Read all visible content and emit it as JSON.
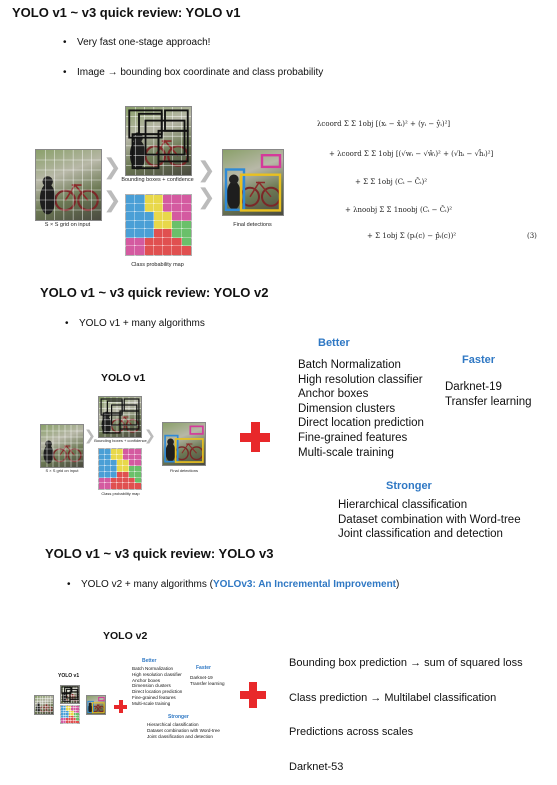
{
  "section1": {
    "title": "YOLO v1 ~ v3 quick review: YOLO v1",
    "bullets": [
      "Very fast one-stage approach!",
      "Image → bounding box coordinate and class probability"
    ],
    "figure": {
      "grid_caption": "S × S grid on input",
      "boxes_caption": "Bounding boxes + confidence",
      "prob_caption": "Class probability map",
      "final_caption": "Final detections"
    },
    "equation": {
      "lines": [
        "λcoord Σ Σ 1obj [(xᵢ − x̂ᵢ)² + (yᵢ − ŷᵢ)²]",
        "+ λcoord Σ Σ 1obj [(√wᵢ − √ŵᵢ)² + (√hᵢ − √ĥᵢ)²]",
        "+ Σ Σ 1obj (Cᵢ − Ĉᵢ)²",
        "+ λnoobj Σ Σ 1noobj (Cᵢ − Ĉᵢ)²",
        "+ Σ 1obj Σ (pᵢ(c) − p̂ᵢ(c))²"
      ],
      "number": "(3)"
    }
  },
  "section2": {
    "title": "YOLO v1 ~ v3 quick review: YOLO v2",
    "bullets": [
      "YOLO v1 + many algorithms"
    ],
    "yolo_label": "YOLO v1",
    "better_heading": "Better",
    "better_items": [
      "Batch Normalization",
      "High resolution classifier",
      "Anchor boxes",
      "Dimension clusters",
      "Direct location prediction",
      "Fine-grained features",
      "Multi-scale training"
    ],
    "faster_heading": "Faster",
    "faster_items": [
      "Darknet-19",
      "Transfer learning"
    ],
    "stronger_heading": "Stronger",
    "stronger_items": [
      "Hierarchical classification",
      "Dataset combination with Word-tree",
      "Joint classification and detection"
    ]
  },
  "section3": {
    "title": "YOLO v1 ~ v3 quick review: YOLO v3",
    "bullet_prefix": "YOLO v2 + many algorithms (",
    "bullet_link": "YOLOv3: An Incremental Improvement",
    "bullet_suffix": ")",
    "yolo_label": "YOLO v2",
    "items": [
      "Bounding box prediction → sum of squared loss",
      "Class prediction → Multilabel classification",
      "Predictions across scales",
      "Darknet-53"
    ]
  },
  "colors": {
    "accent_blue": "#2f78c4",
    "plus_red": "#e8282a"
  },
  "prob_map_colors": [
    [
      "#4a9fd6",
      "#4a9fd6",
      "#e8d84a",
      "#e8d84a",
      "#d45aa0",
      "#d45aa0",
      "#d45aa0"
    ],
    [
      "#4a9fd6",
      "#4a9fd6",
      "#e8d84a",
      "#e8d84a",
      "#d45aa0",
      "#d45aa0",
      "#d45aa0"
    ],
    [
      "#4a9fd6",
      "#4a9fd6",
      "#4a9fd6",
      "#e8d84a",
      "#e8d84a",
      "#d45aa0",
      "#d45aa0"
    ],
    [
      "#4a9fd6",
      "#4a9fd6",
      "#4a9fd6",
      "#e8d84a",
      "#e8d84a",
      "#6ac06a",
      "#6ac06a"
    ],
    [
      "#4a9fd6",
      "#4a9fd6",
      "#4a9fd6",
      "#e05050",
      "#e05050",
      "#6ac06a",
      "#6ac06a"
    ],
    [
      "#d45aa0",
      "#d45aa0",
      "#e05050",
      "#e05050",
      "#e05050",
      "#e05050",
      "#6ac06a"
    ],
    [
      "#d45aa0",
      "#d45aa0",
      "#e05050",
      "#e05050",
      "#e05050",
      "#e05050",
      "#e05050"
    ]
  ]
}
